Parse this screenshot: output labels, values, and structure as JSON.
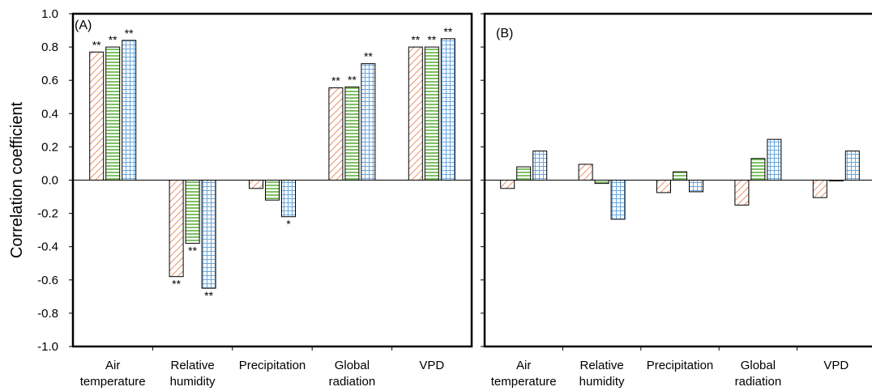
{
  "chart_data": [
    {
      "type": "bar",
      "panel_label": "(A)",
      "ylabel": "Correlation coefficient",
      "ylim": [
        -1.0,
        1.0
      ],
      "yticks": [
        "1.0",
        "0.8",
        "0.6",
        "0.4",
        "0.2",
        "0.0",
        "-0.2",
        "-0.4",
        "-0.6",
        "-0.8",
        "-1.0"
      ],
      "categories": [
        [
          "Air",
          "temperature"
        ],
        [
          "Relative",
          "humidity"
        ],
        [
          "Precipitation"
        ],
        [
          "Global",
          "radiation"
        ],
        [
          "VPD"
        ]
      ],
      "series": [
        {
          "values": [
            0.77,
            -0.58,
            -0.05,
            0.555,
            0.8
          ],
          "significance": [
            "**",
            "**",
            "",
            "**",
            "**"
          ],
          "color": "#e8906a",
          "pattern": "diagonal-hatch"
        },
        {
          "values": [
            0.8,
            -0.38,
            -0.12,
            0.56,
            0.8
          ],
          "significance": [
            "**",
            "**",
            "",
            "**",
            "**"
          ],
          "color": "#5fb040",
          "pattern": "horizontal-lines"
        },
        {
          "values": [
            0.84,
            -0.65,
            -0.22,
            0.7,
            0.85
          ],
          "significance": [
            "**",
            "**",
            "*",
            "**",
            "**"
          ],
          "color": "#6aa6dc",
          "pattern": "grid"
        }
      ],
      "grid": false
    },
    {
      "type": "bar",
      "panel_label": "(B)",
      "ylim": [
        -1.0,
        1.0
      ],
      "categories": [
        [
          "Air",
          "temperature"
        ],
        [
          "Relative",
          "humidity"
        ],
        [
          "Precipitation"
        ],
        [
          "Global",
          "radiation"
        ],
        [
          "VPD"
        ]
      ],
      "series": [
        {
          "values": [
            -0.05,
            0.095,
            -0.075,
            -0.15,
            -0.105
          ],
          "color": "#e8906a",
          "pattern": "diagonal-hatch"
        },
        {
          "values": [
            0.08,
            -0.02,
            0.05,
            0.13,
            -0.005
          ],
          "color": "#5fb040",
          "pattern": "horizontal-lines"
        },
        {
          "values": [
            0.175,
            -0.235,
            -0.07,
            0.245,
            0.175
          ],
          "color": "#6aa6dc",
          "pattern": "grid"
        }
      ],
      "grid": false
    }
  ]
}
